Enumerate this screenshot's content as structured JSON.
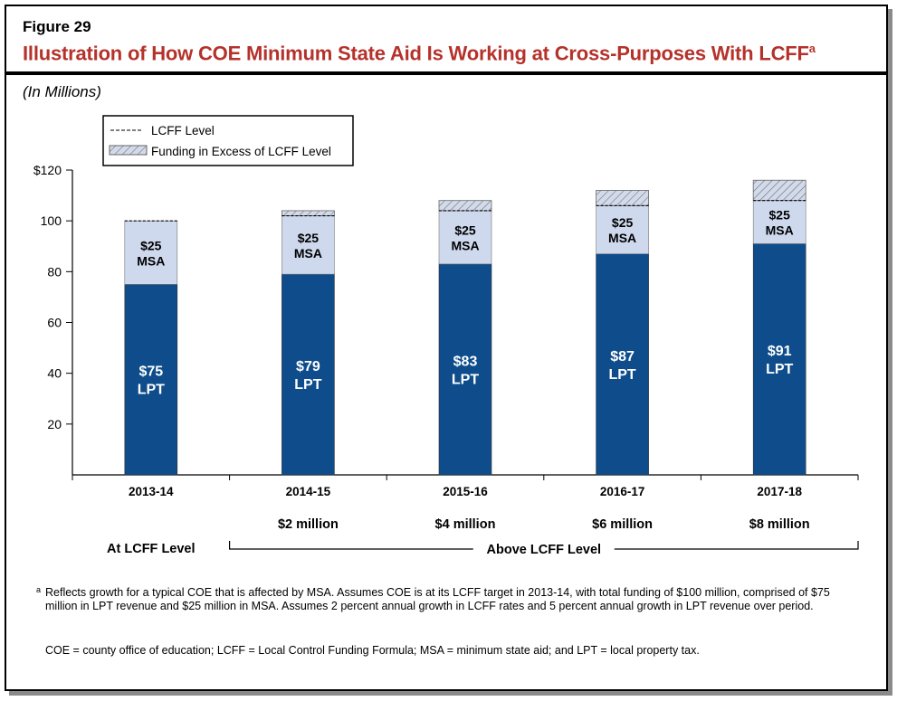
{
  "figure_label": "Figure 29",
  "title": "Illustration of How COE Minimum State Aid Is Working at Cross-Purposes With LCFF",
  "title_superscript": "a",
  "units": "(In Millions)",
  "chart_data": {
    "type": "bar",
    "stacked": true,
    "categories": [
      "2013-14",
      "2014-15",
      "2015-16",
      "2016-17",
      "2017-18"
    ],
    "series": [
      {
        "name": "LPT",
        "values": [
          75,
          79,
          83,
          87,
          91
        ],
        "color": "#0e4c8b"
      },
      {
        "name": "MSA",
        "values": [
          25,
          25,
          25,
          25,
          25
        ],
        "color": "#cfd9ee"
      }
    ],
    "lcff_level": [
      100,
      102,
      104,
      106,
      108
    ],
    "excess_funding": [
      0,
      2,
      4,
      6,
      8
    ],
    "bar_labels_lpt": [
      "$75",
      "$79",
      "$83",
      "$87",
      "$91"
    ],
    "bar_labels_msa": [
      "$25",
      "$25",
      "$25",
      "$25",
      "$25"
    ],
    "lpt_text": "LPT",
    "msa_text": "MSA",
    "ylim": [
      0,
      120
    ],
    "yticks": [
      "$120",
      "100",
      "80",
      "60",
      "40",
      "20"
    ],
    "ytick_values": [
      120,
      100,
      80,
      60,
      40,
      20
    ],
    "legend": {
      "position": "top-left",
      "items": [
        "LCFF Level",
        "Funding in Excess of LCFF Level"
      ]
    },
    "excess_labels": [
      "",
      "$2 million",
      "$4 million",
      "$6 million",
      "$8 million"
    ],
    "at_level_label": "At LCFF Level",
    "above_level_label": "Above LCFF Level",
    "grid": false
  },
  "footnotes": {
    "a_marker": "a",
    "a_text": "Reflects growth for a typical COE that is affected by MSA. Assumes COE is at its LCFF target in 2013-14, with total funding of $100 million, comprised of $75 million in LPT revenue and $25 million in MSA. Assumes 2 percent annual growth in LCFF rates and 5 percent annual growth in LPT revenue over period.",
    "abbrev": "COE = county office of education; LCFF = Local Control Funding Formula; MSA = minimum state aid; and LPT = local property tax."
  }
}
